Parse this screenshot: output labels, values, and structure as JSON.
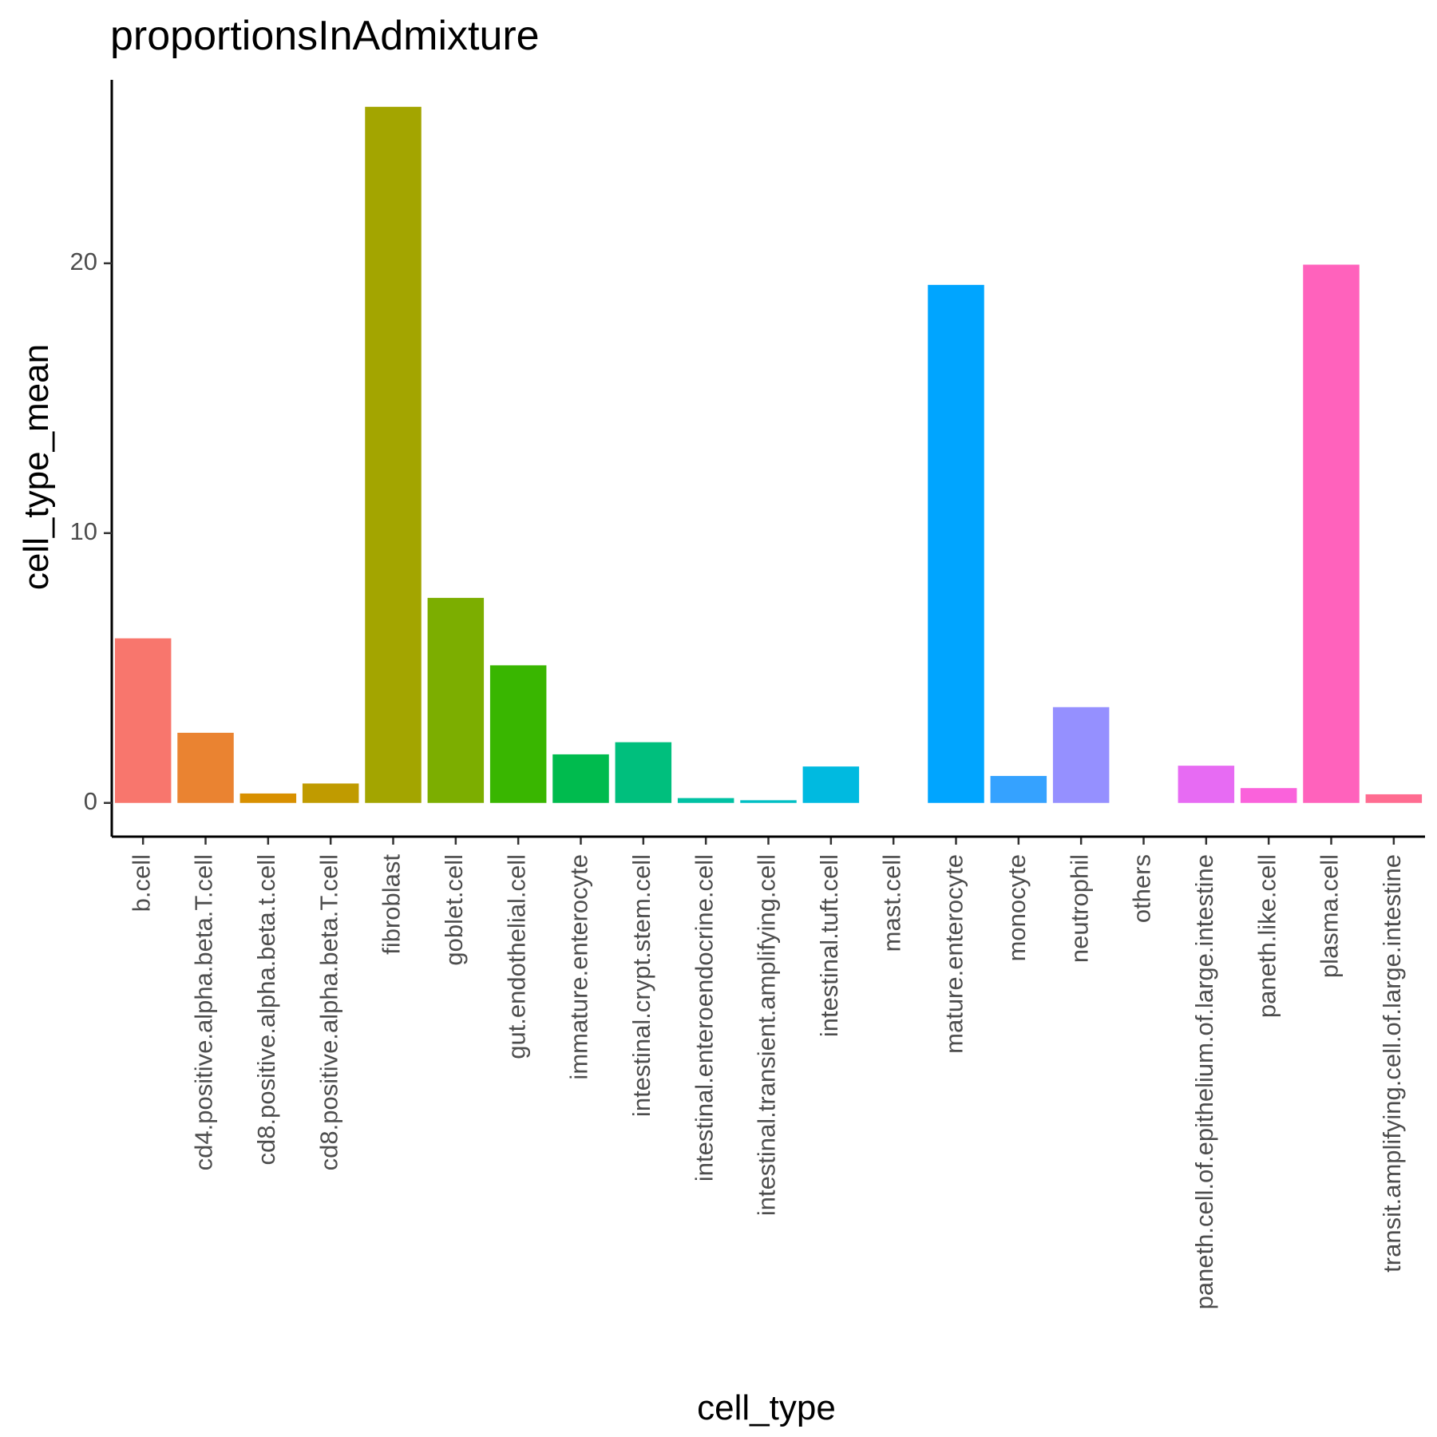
{
  "chart_data": {
    "type": "bar",
    "title": "proportionsInAdmixture",
    "xlabel": "cell_type",
    "ylabel": "cell_type_mean",
    "ylim": [
      -1.25,
      26.8
    ],
    "yticks": [
      0,
      10,
      20
    ],
    "grid": false,
    "legend": "none",
    "categories": [
      "b.cell",
      "cd4.positive.alpha.beta.T.cell",
      "cd8.positive.alpha.beta.t.cell",
      "cd8.positive.alpha.beta.T.cell",
      "fibroblast",
      "goblet.cell",
      "gut.endothelial.cell",
      "immature.enterocyte",
      "intestinal.crypt.stem.cell",
      "intestinal.enteroendocrine.cell",
      "intestinal.transient.amplifying.cell",
      "intestinal.tuft.cell",
      "mast.cell",
      "mature.enterocyte",
      "monocyte",
      "neutrophil",
      "others",
      "paneth.cell.of.epithelium.of.large.intestine",
      "paneth.like.cell",
      "plasma.cell",
      "transit.amplifying.cell.of.large.intestine"
    ],
    "values": [
      6.1,
      2.6,
      0.35,
      0.72,
      25.8,
      7.6,
      5.1,
      1.8,
      2.25,
      0.18,
      0.1,
      1.35,
      0.0,
      19.2,
      1.0,
      3.55,
      0.0,
      1.38,
      0.55,
      19.95,
      0.32
    ],
    "colors": [
      "#F8766D",
      "#EA8331",
      "#D89000",
      "#C09B00",
      "#A3A500",
      "#7CAE00",
      "#39B600",
      "#00BB4E",
      "#00BF7D",
      "#00C1A3",
      "#00BFC4",
      "#00BAE0",
      "#00B0F6",
      "#00A5FF",
      "#35A2FF",
      "#9590FF",
      "#C77CFF",
      "#E76BF3",
      "#FA62DB",
      "#FF62BC",
      "#FF6C91"
    ]
  }
}
